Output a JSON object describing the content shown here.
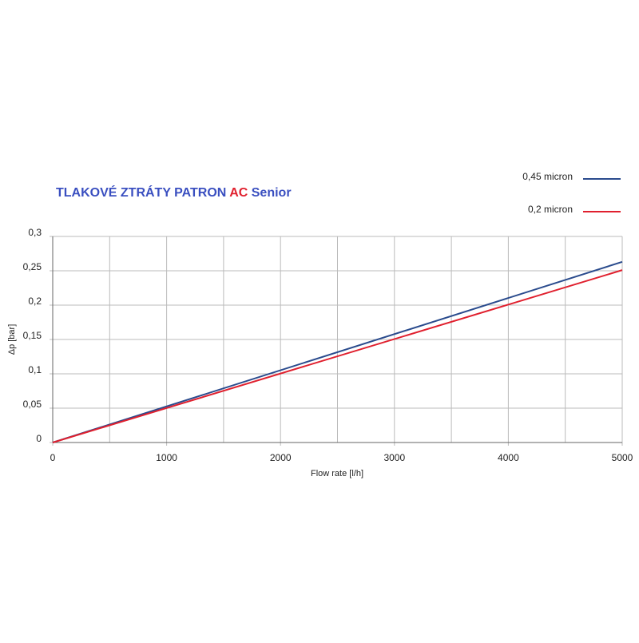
{
  "chart_data": {
    "type": "line",
    "title_segments": [
      {
        "text": "TLAKOVÉ ZTRÁTY PATRON",
        "color": "#3a4fc0"
      },
      {
        "text": "AC",
        "color": "#e0202e"
      },
      {
        "text": "Senior",
        "color": "#3a4fc0"
      }
    ],
    "x_label": "Flow rate [l/h]",
    "y_label": "Δp [bar]",
    "x": [
      0,
      5000
    ],
    "series": [
      {
        "name": "0,45 micron",
        "color": "#2a4b8d",
        "values": [
          0,
          0.263
        ]
      },
      {
        "name": "0,2 micron",
        "color": "#e0202e",
        "values": [
          0,
          0.251
        ]
      }
    ],
    "xlim": [
      0,
      5000
    ],
    "xticks": [
      0,
      1000,
      2000,
      3000,
      4000,
      5000
    ],
    "ylim": [
      0,
      0.3
    ],
    "yticks": [
      0,
      {
        "value": 0.05,
        "label": "0,05"
      },
      {
        "value": 0.1,
        "label": "0,1"
      },
      {
        "value": 0.15,
        "label": "0,15"
      },
      {
        "value": 0.2,
        "label": "0,2"
      },
      {
        "value": 0.25,
        "label": "0,25"
      },
      {
        "value": 0.3,
        "label": "0,3"
      }
    ],
    "grid": true,
    "legend": "top-right"
  }
}
